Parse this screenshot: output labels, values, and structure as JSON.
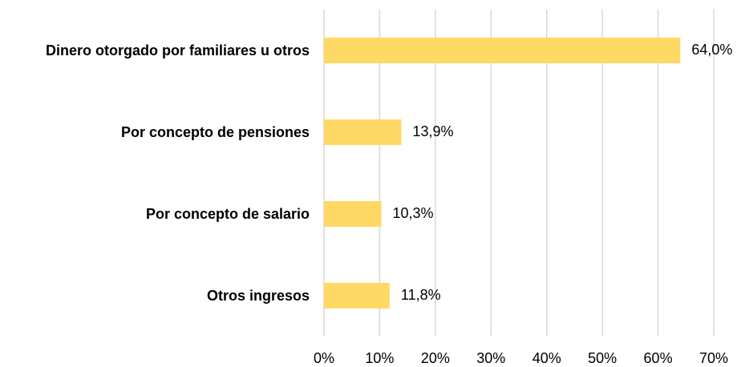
{
  "chart_data": {
    "type": "hbar",
    "categories": [
      "Dinero otorgado por familiares u otros",
      "Por concepto de pensiones",
      "Por concepto de salario",
      "Otros ingresos"
    ],
    "values": [
      64.0,
      13.9,
      10.3,
      11.8
    ],
    "value_labels": [
      "64,0%",
      "13,9%",
      "10,3%",
      "11,8%"
    ],
    "color": "#ffd966",
    "xlim": [
      0,
      70
    ],
    "xticks": [
      {
        "value": 0,
        "label": "0%"
      },
      {
        "value": 10,
        "label": "10%"
      },
      {
        "value": 20,
        "label": "20%"
      },
      {
        "value": 30,
        "label": "30%"
      },
      {
        "value": 40,
        "label": "40%"
      },
      {
        "value": 50,
        "label": "50%"
      },
      {
        "value": 60,
        "label": "60%"
      },
      {
        "value": 70,
        "label": "70%"
      }
    ],
    "grid": true
  }
}
